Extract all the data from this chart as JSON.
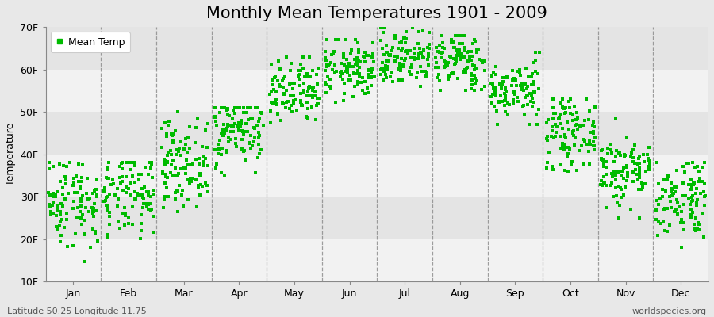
{
  "title": "Monthly Mean Temperatures 1901 - 2009",
  "ylabel": "Temperature",
  "subtitle_left": "Latitude 50.25 Longitude 11.75",
  "subtitle_right": "worldspecies.org",
  "ylim": [
    10,
    70
  ],
  "yticks": [
    10,
    20,
    30,
    40,
    50,
    60,
    70
  ],
  "ytick_labels": [
    "10F",
    "20F",
    "30F",
    "40F",
    "50F",
    "60F",
    "70F"
  ],
  "months": [
    "Jan",
    "Feb",
    "Mar",
    "Apr",
    "May",
    "Jun",
    "Jul",
    "Aug",
    "Sep",
    "Oct",
    "Nov",
    "Dec"
  ],
  "dot_color": "#00bb00",
  "dot_size": 8,
  "background_color": "#e8e8e8",
  "band_colors": [
    "#f2f2f2",
    "#e4e4e4"
  ],
  "title_fontsize": 15,
  "axis_fontsize": 9,
  "legend_fontsize": 9,
  "n_years": 109,
  "random_seed": 42,
  "monthly_means_F": [
    29,
    30,
    38,
    46,
    54,
    60,
    63,
    62,
    55,
    45,
    36,
    30
  ],
  "monthly_stds_F": [
    5.5,
    5.0,
    5.0,
    4.5,
    4.0,
    3.5,
    3.5,
    3.5,
    3.5,
    4.0,
    4.5,
    5.0
  ],
  "monthly_mins_F": [
    10,
    14,
    25,
    35,
    44,
    52,
    56,
    55,
    47,
    36,
    25,
    18
  ],
  "monthly_maxs_F": [
    38,
    38,
    50,
    51,
    63,
    67,
    70,
    68,
    64,
    53,
    51,
    38
  ]
}
